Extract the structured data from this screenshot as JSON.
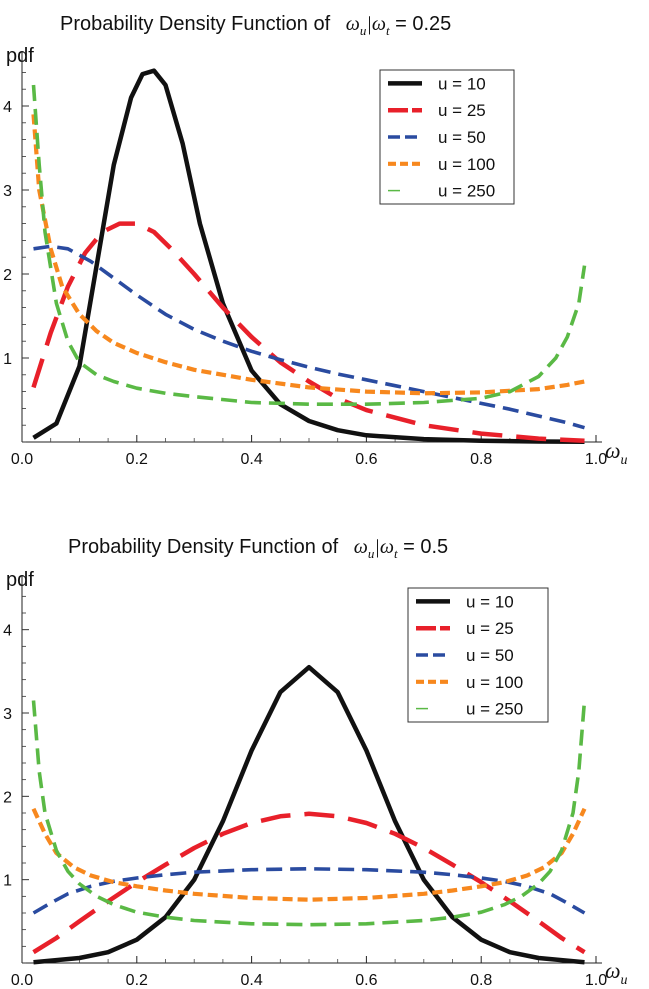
{
  "chart_data": [
    {
      "type": "line",
      "title_text": "Probability Density Function of",
      "title_math": "ωu|ωt = 0.25",
      "title_math_parts": {
        "w1": "ω",
        "s1": "u",
        "bar": "|",
        "w2": "ω",
        "s2": "t",
        "eq": " = 0.25"
      },
      "ylabel": "pdf",
      "xlabel": {
        "w": "ω",
        "s": "u"
      },
      "xlim": [
        0,
        1
      ],
      "ylim": [
        0,
        4.5
      ],
      "xticks": [
        "0.0",
        "0.2",
        "0.4",
        "0.6",
        "0.8",
        "1.0"
      ],
      "yticks": [
        "1",
        "2",
        "3",
        "4"
      ],
      "legend_position": "top-right",
      "series": [
        {
          "name": "u = 10",
          "color": "#111111",
          "dash": "solid",
          "x": [
            0.02,
            0.06,
            0.1,
            0.13,
            0.16,
            0.19,
            0.21,
            0.23,
            0.25,
            0.28,
            0.31,
            0.35,
            0.4,
            0.45,
            0.5,
            0.55,
            0.6,
            0.7,
            0.8,
            0.9,
            0.98
          ],
          "y": [
            0.05,
            0.22,
            0.9,
            2.1,
            3.3,
            4.1,
            4.38,
            4.42,
            4.25,
            3.55,
            2.6,
            1.65,
            0.85,
            0.45,
            0.25,
            0.14,
            0.08,
            0.035,
            0.015,
            0.006,
            0.002
          ]
        },
        {
          "name": "u = 25",
          "color": "#e8202a",
          "dash": "long",
          "x": [
            0.02,
            0.05,
            0.08,
            0.11,
            0.14,
            0.17,
            0.2,
            0.23,
            0.26,
            0.3,
            0.35,
            0.4,
            0.45,
            0.5,
            0.55,
            0.6,
            0.7,
            0.8,
            0.9,
            0.98
          ],
          "y": [
            0.65,
            1.3,
            1.85,
            2.25,
            2.5,
            2.6,
            2.6,
            2.5,
            2.3,
            2.0,
            1.6,
            1.25,
            0.95,
            0.72,
            0.52,
            0.38,
            0.2,
            0.1,
            0.04,
            0.015
          ]
        },
        {
          "name": "u = 50",
          "color": "#2a4ba0",
          "dash": "medium",
          "x": [
            0.02,
            0.05,
            0.08,
            0.12,
            0.15,
            0.2,
            0.25,
            0.3,
            0.35,
            0.4,
            0.45,
            0.5,
            0.55,
            0.6,
            0.65,
            0.7,
            0.75,
            0.8,
            0.85,
            0.9,
            0.95,
            0.98
          ],
          "y": [
            2.3,
            2.33,
            2.3,
            2.15,
            2.0,
            1.75,
            1.52,
            1.34,
            1.2,
            1.08,
            0.98,
            0.89,
            0.81,
            0.74,
            0.67,
            0.6,
            0.53,
            0.46,
            0.39,
            0.31,
            0.23,
            0.17
          ]
        },
        {
          "name": "u = 100",
          "color": "#f7881e",
          "dash": "short",
          "x": [
            0.02,
            0.03,
            0.05,
            0.07,
            0.1,
            0.13,
            0.16,
            0.2,
            0.25,
            0.3,
            0.4,
            0.5,
            0.6,
            0.7,
            0.8,
            0.9,
            0.95,
            0.98
          ],
          "y": [
            3.9,
            3.0,
            2.3,
            1.85,
            1.52,
            1.32,
            1.18,
            1.06,
            0.95,
            0.86,
            0.74,
            0.65,
            0.6,
            0.58,
            0.59,
            0.63,
            0.68,
            0.72
          ]
        },
        {
          "name": "u = 250",
          "color": "#5ab945",
          "dash": "medium",
          "x": [
            0.02,
            0.03,
            0.04,
            0.06,
            0.08,
            0.1,
            0.13,
            0.16,
            0.2,
            0.25,
            0.3,
            0.4,
            0.5,
            0.6,
            0.7,
            0.8,
            0.85,
            0.9,
            0.93,
            0.95,
            0.97,
            0.98
          ],
          "y": [
            4.25,
            3.3,
            2.5,
            1.65,
            1.2,
            0.95,
            0.8,
            0.72,
            0.64,
            0.58,
            0.54,
            0.47,
            0.45,
            0.45,
            0.47,
            0.52,
            0.6,
            0.78,
            1.0,
            1.25,
            1.65,
            2.1
          ]
        }
      ]
    },
    {
      "type": "line",
      "title_text": "Probability Density Function of",
      "title_math": "ωu|ωt = 0.5",
      "title_math_parts": {
        "w1": "ω",
        "s1": "u",
        "bar": "|",
        "w2": "ω",
        "s2": "t",
        "eq": " = 0.5"
      },
      "ylabel": "pdf",
      "xlabel": {
        "w": "ω",
        "s": "u"
      },
      "xlim": [
        0,
        1
      ],
      "ylim": [
        0,
        4.5
      ],
      "xticks": [
        "0.0",
        "0.2",
        "0.4",
        "0.6",
        "0.8",
        "1.0"
      ],
      "yticks": [
        "1",
        "2",
        "3",
        "4"
      ],
      "legend_position": "top-right",
      "series": [
        {
          "name": "u = 10",
          "color": "#111111",
          "dash": "solid",
          "x": [
            0.02,
            0.1,
            0.15,
            0.2,
            0.25,
            0.3,
            0.35,
            0.4,
            0.45,
            0.5,
            0.55,
            0.6,
            0.65,
            0.7,
            0.75,
            0.8,
            0.85,
            0.9,
            0.98
          ],
          "y": [
            0.01,
            0.06,
            0.13,
            0.28,
            0.55,
            1.0,
            1.7,
            2.55,
            3.25,
            3.55,
            3.25,
            2.55,
            1.7,
            1.0,
            0.55,
            0.28,
            0.13,
            0.06,
            0.01
          ]
        },
        {
          "name": "u = 25",
          "color": "#e8202a",
          "dash": "long",
          "x": [
            0.02,
            0.06,
            0.1,
            0.15,
            0.2,
            0.25,
            0.3,
            0.35,
            0.4,
            0.45,
            0.5,
            0.55,
            0.6,
            0.65,
            0.7,
            0.75,
            0.8,
            0.85,
            0.9,
            0.94,
            0.98
          ],
          "y": [
            0.13,
            0.3,
            0.5,
            0.74,
            0.97,
            1.18,
            1.38,
            1.55,
            1.68,
            1.76,
            1.79,
            1.76,
            1.68,
            1.55,
            1.38,
            1.18,
            0.97,
            0.74,
            0.5,
            0.3,
            0.13
          ]
        },
        {
          "name": "u = 50",
          "color": "#2a4ba0",
          "dash": "medium",
          "x": [
            0.02,
            0.05,
            0.08,
            0.12,
            0.16,
            0.2,
            0.25,
            0.3,
            0.4,
            0.5,
            0.6,
            0.7,
            0.75,
            0.8,
            0.84,
            0.88,
            0.92,
            0.95,
            0.98
          ],
          "y": [
            0.6,
            0.72,
            0.83,
            0.92,
            0.98,
            1.02,
            1.06,
            1.09,
            1.12,
            1.13,
            1.12,
            1.09,
            1.06,
            1.02,
            0.98,
            0.92,
            0.83,
            0.72,
            0.6
          ]
        },
        {
          "name": "u = 100",
          "color": "#f7881e",
          "dash": "short",
          "x": [
            0.02,
            0.04,
            0.06,
            0.09,
            0.12,
            0.16,
            0.2,
            0.25,
            0.3,
            0.4,
            0.5,
            0.6,
            0.7,
            0.75,
            0.8,
            0.84,
            0.88,
            0.91,
            0.94,
            0.96,
            0.98
          ],
          "y": [
            1.85,
            1.55,
            1.32,
            1.15,
            1.05,
            0.97,
            0.92,
            0.87,
            0.83,
            0.78,
            0.76,
            0.78,
            0.83,
            0.87,
            0.92,
            0.97,
            1.05,
            1.15,
            1.32,
            1.55,
            1.85
          ]
        },
        {
          "name": "u = 250",
          "color": "#5ab945",
          "dash": "medium",
          "x": [
            0.02,
            0.03,
            0.04,
            0.06,
            0.08,
            0.1,
            0.13,
            0.16,
            0.2,
            0.25,
            0.3,
            0.4,
            0.5,
            0.6,
            0.7,
            0.75,
            0.8,
            0.84,
            0.87,
            0.9,
            0.92,
            0.94,
            0.96,
            0.97,
            0.98
          ],
          "y": [
            3.15,
            2.3,
            1.8,
            1.35,
            1.1,
            0.95,
            0.8,
            0.7,
            0.61,
            0.55,
            0.51,
            0.47,
            0.46,
            0.47,
            0.51,
            0.55,
            0.61,
            0.7,
            0.8,
            0.95,
            1.1,
            1.35,
            1.8,
            2.3,
            3.15
          ]
        }
      ]
    }
  ]
}
